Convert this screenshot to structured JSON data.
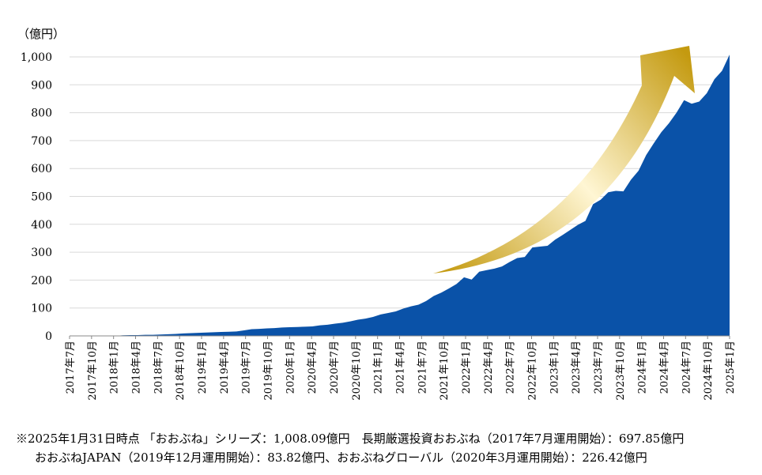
{
  "chart_data": {
    "type": "area",
    "unit_label": "（億円）",
    "ylim": [
      0,
      1000
    ],
    "yticks": [
      "0",
      "100",
      "200",
      "300",
      "400",
      "500",
      "600",
      "700",
      "800",
      "900",
      "1,000"
    ],
    "ytick_values": [
      0,
      100,
      200,
      300,
      400,
      500,
      600,
      700,
      800,
      900,
      1000
    ],
    "grid": true,
    "area_color": "#0a52a8",
    "arrow_colors": [
      "#c49a10",
      "#fff6d4",
      "#c49a10"
    ],
    "x_labels": [
      "2017年7月",
      "2017年10月",
      "2018年1月",
      "2018年4月",
      "2018年7月",
      "2018年10月",
      "2019年1月",
      "2019年4月",
      "2019年7月",
      "2019年10月",
      "2020年1月",
      "2020年4月",
      "2020年7月",
      "2020年10月",
      "2021年1月",
      "2021年4月",
      "2021年7月",
      "2021年10月",
      "2022年1月",
      "2022年4月",
      "2022年7月",
      "2022年10月",
      "2023年1月",
      "2023年4月",
      "2023年7月",
      "2023年10月",
      "2024年1月",
      "2024年4月",
      "2024年7月",
      "2024年10月",
      "2025年1月"
    ],
    "values": [
      0,
      0,
      0,
      0,
      0,
      0,
      0,
      2,
      3,
      3,
      4,
      4,
      5,
      6,
      7,
      9,
      10,
      11,
      12,
      13,
      14,
      15,
      16,
      20,
      24,
      25,
      27,
      28,
      30,
      31,
      32,
      33,
      34,
      38,
      40,
      44,
      47,
      52,
      58,
      62,
      68,
      77,
      82,
      88,
      98,
      106,
      112,
      125,
      143,
      155,
      170,
      186,
      210,
      202,
      230,
      236,
      241,
      249,
      265,
      279,
      283,
      317,
      320,
      323,
      345,
      362,
      380,
      398,
      412,
      472,
      488,
      515,
      520,
      518,
      560,
      592,
      648,
      690,
      730,
      762,
      800,
      845,
      832,
      840,
      870,
      920,
      950,
      1008
    ]
  },
  "notes": {
    "line1": "※2025年1月31日時点 「おおぶね」シリーズ：1,008.09億円　長期厳選投資おおぶね（2017年7月運用開始）：697.85億円",
    "line2": "おおぶねJAPAN（2019年12月運用開始）：83.82億円、おおぶねグローバル（2020年3月運用開始）：226.42億円"
  }
}
